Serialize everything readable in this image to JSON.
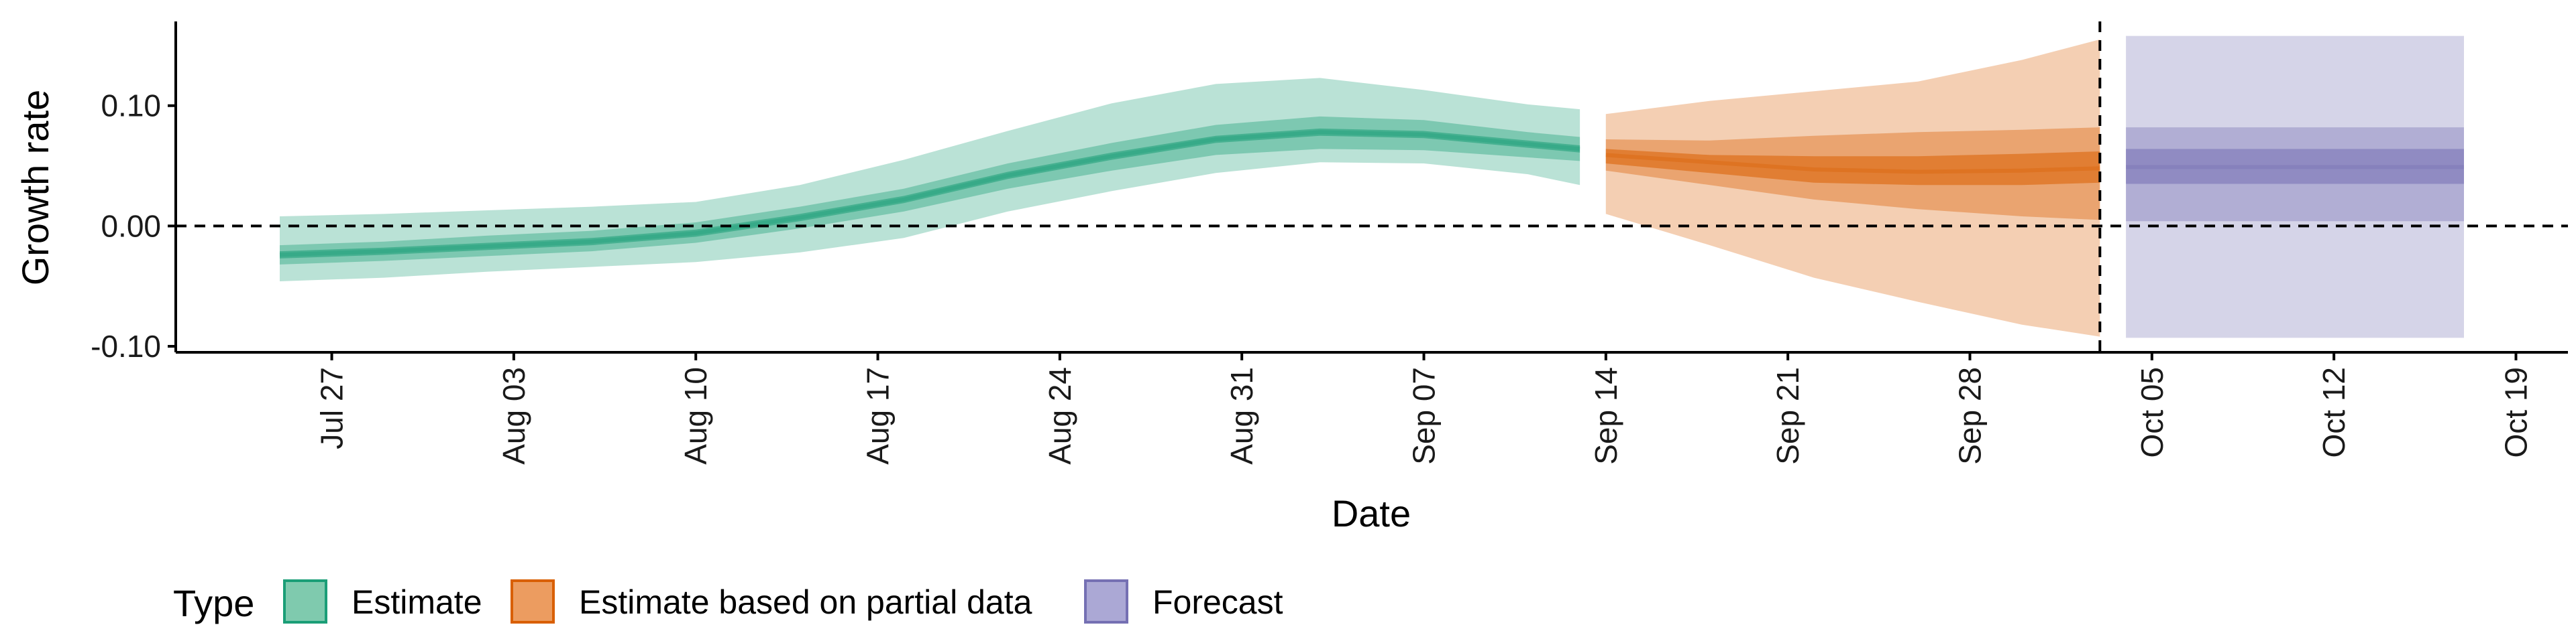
{
  "chart_data": {
    "type": "area",
    "xlabel": "Date",
    "ylabel": "Growth rate",
    "ylim": [
      -0.105,
      0.17
    ],
    "xlim": [
      "2020-07-21",
      "2020-10-21"
    ],
    "y_ticks": [
      {
        "value": -0.1,
        "label": "-0.10"
      },
      {
        "value": 0.0,
        "label": "0.00"
      },
      {
        "value": 0.1,
        "label": "0.10"
      }
    ],
    "x_ticks": [
      {
        "date": "2020-07-27",
        "label": "Jul 27"
      },
      {
        "date": "2020-08-03",
        "label": "Aug 03"
      },
      {
        "date": "2020-08-10",
        "label": "Aug 10"
      },
      {
        "date": "2020-08-17",
        "label": "Aug 17"
      },
      {
        "date": "2020-08-24",
        "label": "Aug 24"
      },
      {
        "date": "2020-08-31",
        "label": "Aug 31"
      },
      {
        "date": "2020-09-07",
        "label": "Sep 07"
      },
      {
        "date": "2020-09-14",
        "label": "Sep 14"
      },
      {
        "date": "2020-09-21",
        "label": "Sep 21"
      },
      {
        "date": "2020-09-28",
        "label": "Sep 28"
      },
      {
        "date": "2020-10-05",
        "label": "Oct 05"
      },
      {
        "date": "2020-10-12",
        "label": "Oct 12"
      },
      {
        "date": "2020-10-19",
        "label": "Oct 19"
      }
    ],
    "reference_lines": [
      {
        "axis": "y",
        "value": 0,
        "style": "dashed"
      },
      {
        "axis": "x",
        "date": "2020-10-03",
        "style": "dashed"
      }
    ],
    "legend": {
      "title": "Type",
      "position": "bottom",
      "items": [
        {
          "label": "Estimate",
          "color": "#1b9e77",
          "fill": "#7fcaae"
        },
        {
          "label": "Estimate based on partial data",
          "color": "#d95f02",
          "fill": "#ec9c60"
        },
        {
          "label": "Forecast",
          "color": "#7570b3",
          "fill": "#aba8d5"
        }
      ]
    },
    "series": [
      {
        "name": "Estimate",
        "color": "#1b9e77",
        "dates": [
          "2020-07-25",
          "2020-07-29",
          "2020-08-02",
          "2020-08-06",
          "2020-08-10",
          "2020-08-14",
          "2020-08-18",
          "2020-08-22",
          "2020-08-26",
          "2020-08-30",
          "2020-09-03",
          "2020-09-07",
          "2020-09-11",
          "2020-09-13"
        ],
        "median": [
          -0.024,
          -0.021,
          -0.017,
          -0.013,
          -0.006,
          0.007,
          0.022,
          0.042,
          0.058,
          0.072,
          0.078,
          0.076,
          0.068,
          0.064
        ],
        "ci20": [
          [
            -0.027,
            -0.021
          ],
          [
            -0.024,
            -0.018
          ],
          [
            -0.02,
            -0.014
          ],
          [
            -0.016,
            -0.01
          ],
          [
            -0.009,
            -0.003
          ],
          [
            0.004,
            0.01
          ],
          [
            0.019,
            0.025
          ],
          [
            0.039,
            0.045
          ],
          [
            0.055,
            0.061
          ],
          [
            0.069,
            0.075
          ],
          [
            0.075,
            0.081
          ],
          [
            0.073,
            0.079
          ],
          [
            0.065,
            0.071
          ],
          [
            0.061,
            0.067
          ]
        ],
        "ci50": [
          [
            -0.032,
            -0.016
          ],
          [
            -0.029,
            -0.013
          ],
          [
            -0.025,
            -0.008
          ],
          [
            -0.021,
            -0.004
          ],
          [
            -0.014,
            0.003
          ],
          [
            -0.002,
            0.016
          ],
          [
            0.012,
            0.031
          ],
          [
            0.031,
            0.052
          ],
          [
            0.046,
            0.069
          ],
          [
            0.059,
            0.084
          ],
          [
            0.064,
            0.091
          ],
          [
            0.063,
            0.088
          ],
          [
            0.057,
            0.078
          ],
          [
            0.054,
            0.074
          ]
        ],
        "ci90": [
          [
            -0.046,
            0.008
          ],
          [
            -0.043,
            0.01
          ],
          [
            -0.038,
            0.013
          ],
          [
            -0.034,
            0.016
          ],
          [
            -0.03,
            0.02
          ],
          [
            -0.022,
            0.034
          ],
          [
            -0.01,
            0.055
          ],
          [
            0.012,
            0.079
          ],
          [
            0.029,
            0.102
          ],
          [
            0.044,
            0.118
          ],
          [
            0.053,
            0.123
          ],
          [
            0.052,
            0.113
          ],
          [
            0.043,
            0.101
          ],
          [
            0.034,
            0.097
          ]
        ]
      },
      {
        "name": "Estimate based on partial data",
        "color": "#d95f02",
        "dates": [
          "2020-09-14",
          "2020-09-18",
          "2020-09-22",
          "2020-09-26",
          "2020-09-30",
          "2020-10-03"
        ],
        "median": [
          0.059,
          0.053,
          0.047,
          0.045,
          0.046,
          0.048
        ],
        "ci20": [
          [
            0.052,
            0.064
          ],
          [
            0.044,
            0.059
          ],
          [
            0.036,
            0.058
          ],
          [
            0.034,
            0.058
          ],
          [
            0.034,
            0.06
          ],
          [
            0.036,
            0.062
          ]
        ],
        "ci50": [
          [
            0.046,
            0.072
          ],
          [
            0.034,
            0.071
          ],
          [
            0.022,
            0.075
          ],
          [
            0.014,
            0.078
          ],
          [
            0.008,
            0.08
          ],
          [
            0.005,
            0.082
          ]
        ],
        "ci90": [
          [
            0.01,
            0.093
          ],
          [
            -0.016,
            0.104
          ],
          [
            -0.043,
            0.112
          ],
          [
            -0.063,
            0.12
          ],
          [
            -0.082,
            0.138
          ],
          [
            -0.092,
            0.155
          ]
        ]
      },
      {
        "name": "Forecast",
        "color": "#7570b3",
        "dates": [
          "2020-10-04",
          "2020-10-17"
        ],
        "median": [
          0.049,
          0.049
        ],
        "ci20": [
          [
            0.035,
            0.064
          ],
          [
            0.035,
            0.064
          ]
        ],
        "ci50": [
          [
            0.004,
            0.082
          ],
          [
            0.004,
            0.082
          ]
        ],
        "ci90": [
          [
            -0.093,
            0.158
          ],
          [
            -0.093,
            0.158
          ]
        ]
      }
    ]
  }
}
